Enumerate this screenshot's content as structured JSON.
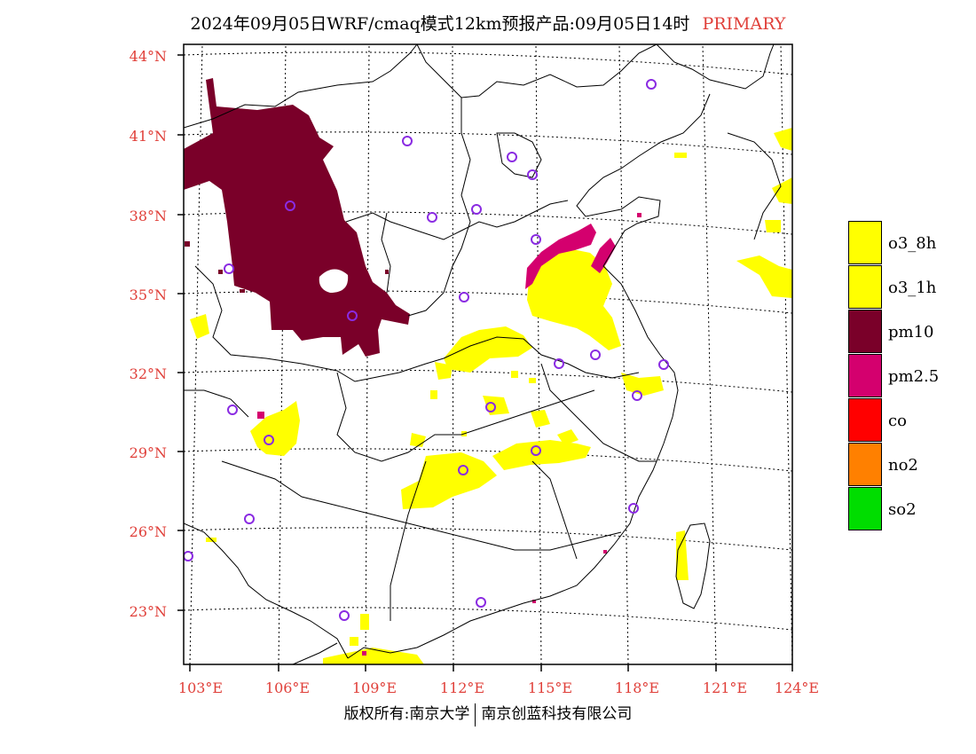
{
  "title": {
    "text": "2024年09月05日WRF/cmaq模式12km预报产品:09月05日14时",
    "tag": "PRIMARY"
  },
  "lat_labels": [
    "44°N",
    "41°N",
    "38°N",
    "35°N",
    "32°N",
    "29°N",
    "26°N",
    "23°N"
  ],
  "lon_labels": [
    "103°E",
    "106°E",
    "109°E",
    "112°E",
    "115°E",
    "118°E",
    "121°E",
    "124°E"
  ],
  "legend": [
    {
      "label": "o3_8h",
      "color": "#ffff00"
    },
    {
      "label": "o3_1h",
      "color": "#ffff00"
    },
    {
      "label": "pm10",
      "color": "#7a0029"
    },
    {
      "label": "pm2.5",
      "color": "#d4006e"
    },
    {
      "label": "co",
      "color": "#ff0000"
    },
    {
      "label": "no2",
      "color": "#ff8000"
    },
    {
      "label": "so2",
      "color": "#00dd00"
    }
  ],
  "copyright": {
    "left": "版权所有:南京大学",
    "right": "南京创蓝科技有限公司"
  },
  "colors": {
    "axis_label": "#e0403a",
    "station_marker": "#8a2be2",
    "frame": "#000000"
  }
}
